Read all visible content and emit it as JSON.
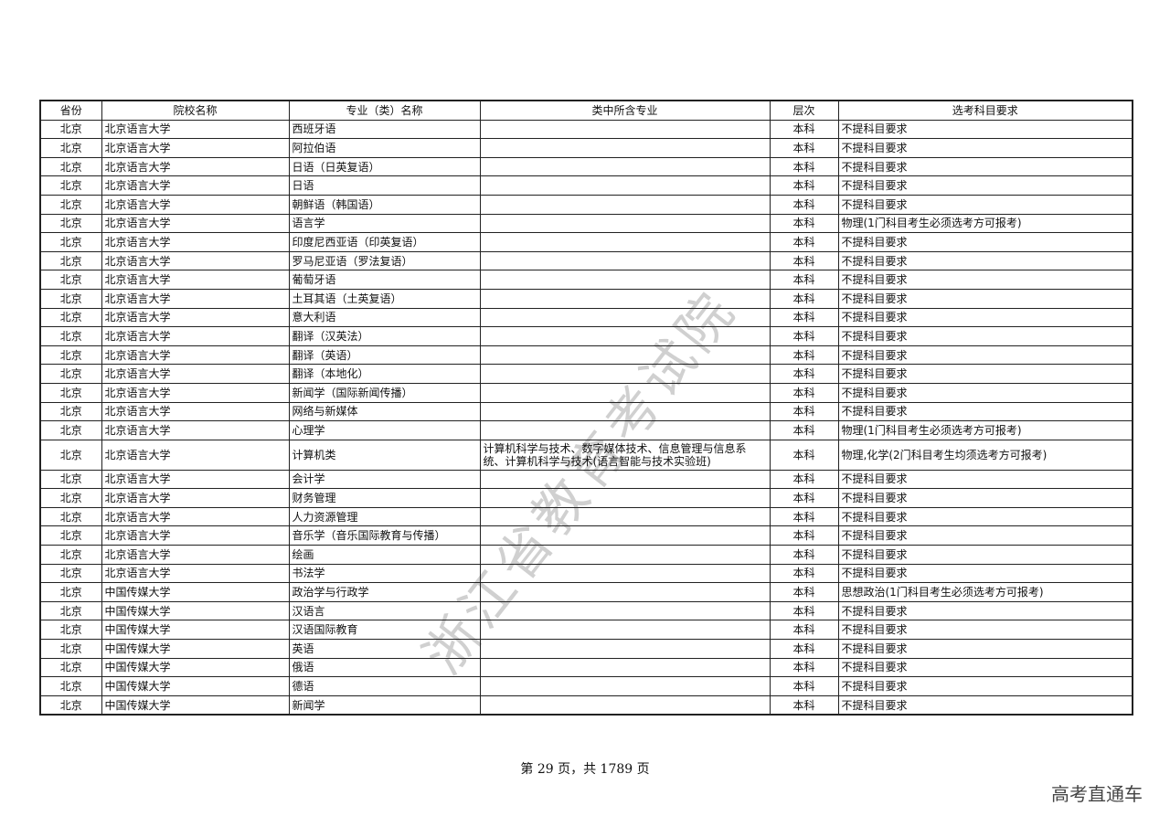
{
  "table": {
    "headers": [
      "省份",
      "院校名称",
      "专业（类）名称",
      "类中所含专业",
      "层次",
      "选考科目要求"
    ],
    "rows": [
      [
        "北京",
        "北京语言大学",
        "西班牙语",
        "",
        "本科",
        "不提科目要求"
      ],
      [
        "北京",
        "北京语言大学",
        "阿拉伯语",
        "",
        "本科",
        "不提科目要求"
      ],
      [
        "北京",
        "北京语言大学",
        "日语（日英复语）",
        "",
        "本科",
        "不提科目要求"
      ],
      [
        "北京",
        "北京语言大学",
        "日语",
        "",
        "本科",
        "不提科目要求"
      ],
      [
        "北京",
        "北京语言大学",
        "朝鲜语（韩国语）",
        "",
        "本科",
        "不提科目要求"
      ],
      [
        "北京",
        "北京语言大学",
        "语言学",
        "",
        "本科",
        "物理(1门科目考生必须选考方可报考)"
      ],
      [
        "北京",
        "北京语言大学",
        "印度尼西亚语（印英复语）",
        "",
        "本科",
        "不提科目要求"
      ],
      [
        "北京",
        "北京语言大学",
        "罗马尼亚语（罗法复语）",
        "",
        "本科",
        "不提科目要求"
      ],
      [
        "北京",
        "北京语言大学",
        "葡萄牙语",
        "",
        "本科",
        "不提科目要求"
      ],
      [
        "北京",
        "北京语言大学",
        "土耳其语（土英复语）",
        "",
        "本科",
        "不提科目要求"
      ],
      [
        "北京",
        "北京语言大学",
        "意大利语",
        "",
        "本科",
        "不提科目要求"
      ],
      [
        "北京",
        "北京语言大学",
        "翻译（汉英法）",
        "",
        "本科",
        "不提科目要求"
      ],
      [
        "北京",
        "北京语言大学",
        "翻译（英语）",
        "",
        "本科",
        "不提科目要求"
      ],
      [
        "北京",
        "北京语言大学",
        "翻译（本地化）",
        "",
        "本科",
        "不提科目要求"
      ],
      [
        "北京",
        "北京语言大学",
        "新闻学（国际新闻传播）",
        "",
        "本科",
        "不提科目要求"
      ],
      [
        "北京",
        "北京语言大学",
        "网络与新媒体",
        "",
        "本科",
        "不提科目要求"
      ],
      [
        "北京",
        "北京语言大学",
        "心理学",
        "",
        "本科",
        "物理(1门科目考生必须选考方可报考)"
      ],
      [
        "北京",
        "北京语言大学",
        "计算机类",
        "计算机科学与技术、数字媒体技术、信息管理与信息系统、计算机科学与技术(语言智能与技术实验班)",
        "本科",
        "物理,化学(2门科目考生均须选考方可报考)"
      ],
      [
        "北京",
        "北京语言大学",
        "会计学",
        "",
        "本科",
        "不提科目要求"
      ],
      [
        "北京",
        "北京语言大学",
        "财务管理",
        "",
        "本科",
        "不提科目要求"
      ],
      [
        "北京",
        "北京语言大学",
        "人力资源管理",
        "",
        "本科",
        "不提科目要求"
      ],
      [
        "北京",
        "北京语言大学",
        "音乐学（音乐国际教育与传播）",
        "",
        "本科",
        "不提科目要求"
      ],
      [
        "北京",
        "北京语言大学",
        "绘画",
        "",
        "本科",
        "不提科目要求"
      ],
      [
        "北京",
        "北京语言大学",
        "书法学",
        "",
        "本科",
        "不提科目要求"
      ],
      [
        "北京",
        "中国传媒大学",
        "政治学与行政学",
        "",
        "本科",
        "思想政治(1门科目考生必须选考方可报考)"
      ],
      [
        "北京",
        "中国传媒大学",
        "汉语言",
        "",
        "本科",
        "不提科目要求"
      ],
      [
        "北京",
        "中国传媒大学",
        "汉语国际教育",
        "",
        "本科",
        "不提科目要求"
      ],
      [
        "北京",
        "中国传媒大学",
        "英语",
        "",
        "本科",
        "不提科目要求"
      ],
      [
        "北京",
        "中国传媒大学",
        "俄语",
        "",
        "本科",
        "不提科目要求"
      ],
      [
        "北京",
        "中国传媒大学",
        "德语",
        "",
        "本科",
        "不提科目要求"
      ],
      [
        "北京",
        "中国传媒大学",
        "新闻学",
        "",
        "本科",
        "不提科目要求"
      ]
    ]
  },
  "watermark": "浙江省教育考试院",
  "footer": {
    "page_text": "第 29 页，共 1789 页"
  },
  "brand": "高考直通车"
}
